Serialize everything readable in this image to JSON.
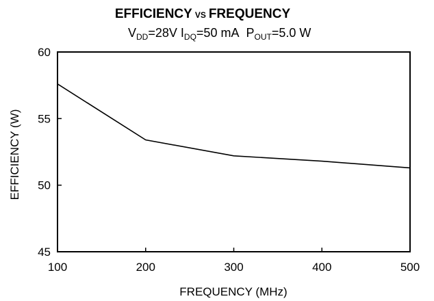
{
  "chart_data": {
    "type": "line",
    "title": "EFFICIENCY",
    "title_vs": "VS",
    "title_tail": "FREQUENCY",
    "subtitle": {
      "vdd_main": "V",
      "vdd_sub": "DD",
      "vdd_value": "=28V",
      "idq_main": "I",
      "idq_sub": "DQ",
      "idq_value": "=50 mA",
      "pout_main": "P",
      "pout_sub": "OUT",
      "pout_value": "=5.0 W"
    },
    "xlabel": "FREQUENCY (MHz)",
    "ylabel": "EFFICIENCY (W)",
    "xlim": [
      100,
      500
    ],
    "ylim": [
      45,
      60
    ],
    "xticks": [
      100,
      200,
      300,
      400,
      500
    ],
    "yticks": [
      45,
      50,
      55,
      60
    ],
    "grid": false,
    "series": [
      {
        "x": [
          100,
          200,
          300,
          400,
          500
        ],
        "values": [
          57.6,
          53.4,
          52.2,
          51.8,
          51.3
        ]
      }
    ]
  }
}
